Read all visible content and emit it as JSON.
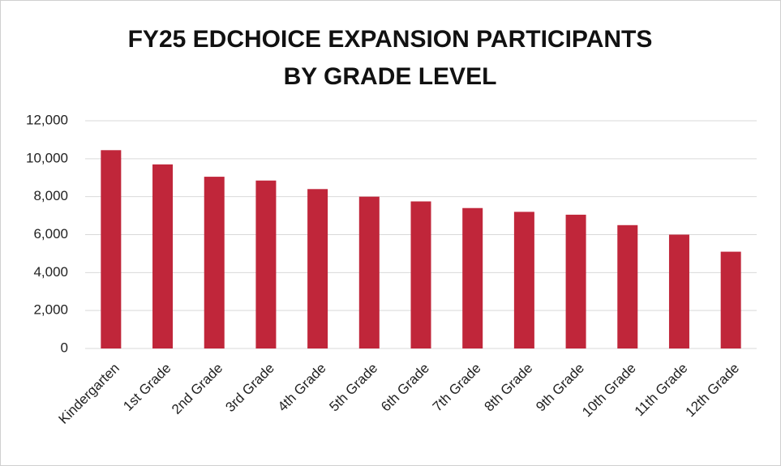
{
  "chart_data": {
    "type": "bar",
    "title": [
      "FY25 EDCHOICE EXPANSION PARTICIPANTS",
      "BY GRADE LEVEL"
    ],
    "categories": [
      "Kindergarten",
      "1st Grade",
      "2nd Grade",
      "3rd Grade",
      "4th Grade",
      "5th Grade",
      "6th Grade",
      "7th Grade",
      "8th Grade",
      "9th Grade",
      "10th Grade",
      "11th Grade",
      "12th Grade"
    ],
    "values": [
      10450,
      9700,
      9050,
      8850,
      8400,
      8000,
      7750,
      7400,
      7200,
      7050,
      6500,
      6000,
      5100
    ],
    "color": "#c0263a",
    "ylim": [
      0,
      12000
    ],
    "yticks": [
      0,
      {
        "value": 2000,
        "label": "2,000"
      },
      {
        "value": 4000,
        "label": "4,000"
      },
      {
        "value": 6000,
        "label": "6,000"
      },
      {
        "value": 8000,
        "label": "8,000"
      },
      {
        "value": 10000,
        "label": "10,000"
      },
      {
        "value": 12000,
        "label": "12,000"
      }
    ],
    "grid": true
  }
}
